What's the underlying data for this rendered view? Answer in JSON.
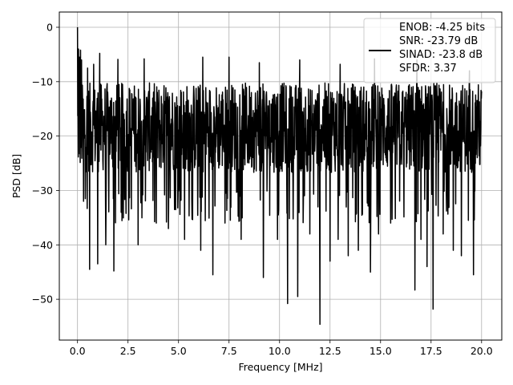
{
  "chart_data": {
    "type": "line",
    "xlabel": "Frequency [MHz]",
    "ylabel": "PSD [dB]",
    "xlim": [
      -0.9,
      21.0
    ],
    "ylim": [
      -57.5,
      2.8
    ],
    "xticks": [
      0.0,
      2.5,
      5.0,
      7.5,
      10.0,
      12.5,
      15.0,
      17.5,
      20.0
    ],
    "xtick_labels": [
      "0.0",
      "2.5",
      "5.0",
      "7.5",
      "10.0",
      "12.5",
      "15.0",
      "17.5",
      "20.0"
    ],
    "yticks": [
      0,
      -10,
      -20,
      -30,
      -40,
      -50
    ],
    "ytick_labels": [
      "0",
      "−10",
      "−20",
      "−30",
      "−40",
      "−50"
    ],
    "grid": true,
    "legend_position": "top-right",
    "series": [
      {
        "name": "ENOB: -4.25 bits\nSNR: -23.79 dB\nSINAD: -23.8 dB\nSFDR: 3.37",
        "legend_lines": [
          "ENOB: -4.25 bits",
          "SNR: -23.79 dB",
          "SINAD: -23.8 dB",
          "SFDR: 3.37"
        ],
        "color": "#000000",
        "x_range": [
          0,
          20
        ],
        "noise_floor_band": [
          -30,
          -8
        ],
        "peak_points": [
          {
            "x": 0.0,
            "y": 0.0
          },
          {
            "x": 0.05,
            "y": -4.0
          },
          {
            "x": 0.1,
            "y": -5.5
          },
          {
            "x": 0.2,
            "y": -6.0
          }
        ],
        "dip_points": [
          {
            "x": 0.1,
            "y": -31
          },
          {
            "x": 0.3,
            "y": -32
          },
          {
            "x": 0.6,
            "y": -44.5
          },
          {
            "x": 1.0,
            "y": -43.5
          },
          {
            "x": 1.4,
            "y": -40
          },
          {
            "x": 1.8,
            "y": -44.8
          },
          {
            "x": 2.0,
            "y": -39
          },
          {
            "x": 3.0,
            "y": -40
          },
          {
            "x": 3.9,
            "y": -36
          },
          {
            "x": 4.5,
            "y": -37
          },
          {
            "x": 5.3,
            "y": -39
          },
          {
            "x": 6.1,
            "y": -41
          },
          {
            "x": 6.7,
            "y": -45.5
          },
          {
            "x": 7.3,
            "y": -36
          },
          {
            "x": 8.1,
            "y": -39
          },
          {
            "x": 9.2,
            "y": -46
          },
          {
            "x": 9.9,
            "y": -39
          },
          {
            "x": 10.4,
            "y": -50.8
          },
          {
            "x": 10.9,
            "y": -49.5
          },
          {
            "x": 11.5,
            "y": -38
          },
          {
            "x": 12.0,
            "y": -54.6
          },
          {
            "x": 12.5,
            "y": -43
          },
          {
            "x": 12.9,
            "y": -39
          },
          {
            "x": 13.4,
            "y": -42
          },
          {
            "x": 13.9,
            "y": -41
          },
          {
            "x": 14.5,
            "y": -45
          },
          {
            "x": 14.9,
            "y": -38
          },
          {
            "x": 15.5,
            "y": -36
          },
          {
            "x": 16.7,
            "y": -48.3
          },
          {
            "x": 17.0,
            "y": -39
          },
          {
            "x": 17.3,
            "y": -44
          },
          {
            "x": 17.6,
            "y": -51.8
          },
          {
            "x": 18.1,
            "y": -38
          },
          {
            "x": 18.6,
            "y": -41
          },
          {
            "x": 19.0,
            "y": -42
          },
          {
            "x": 19.6,
            "y": -45.5
          }
        ],
        "spike_points": [
          {
            "x": 0.15,
            "y": -4.2
          },
          {
            "x": 0.5,
            "y": -7.5
          },
          {
            "x": 0.8,
            "y": -6.8
          },
          {
            "x": 1.1,
            "y": -4.8
          },
          {
            "x": 2.0,
            "y": -5.9
          },
          {
            "x": 3.3,
            "y": -5.8
          },
          {
            "x": 6.2,
            "y": -5.5
          },
          {
            "x": 7.5,
            "y": -5.5
          },
          {
            "x": 9.0,
            "y": -6.5
          },
          {
            "x": 11.0,
            "y": -6.0
          },
          {
            "x": 13.0,
            "y": -6.8
          },
          {
            "x": 14.7,
            "y": -5.8
          },
          {
            "x": 16.8,
            "y": -6.0
          },
          {
            "x": 19.4,
            "y": -8.0
          }
        ]
      }
    ]
  }
}
